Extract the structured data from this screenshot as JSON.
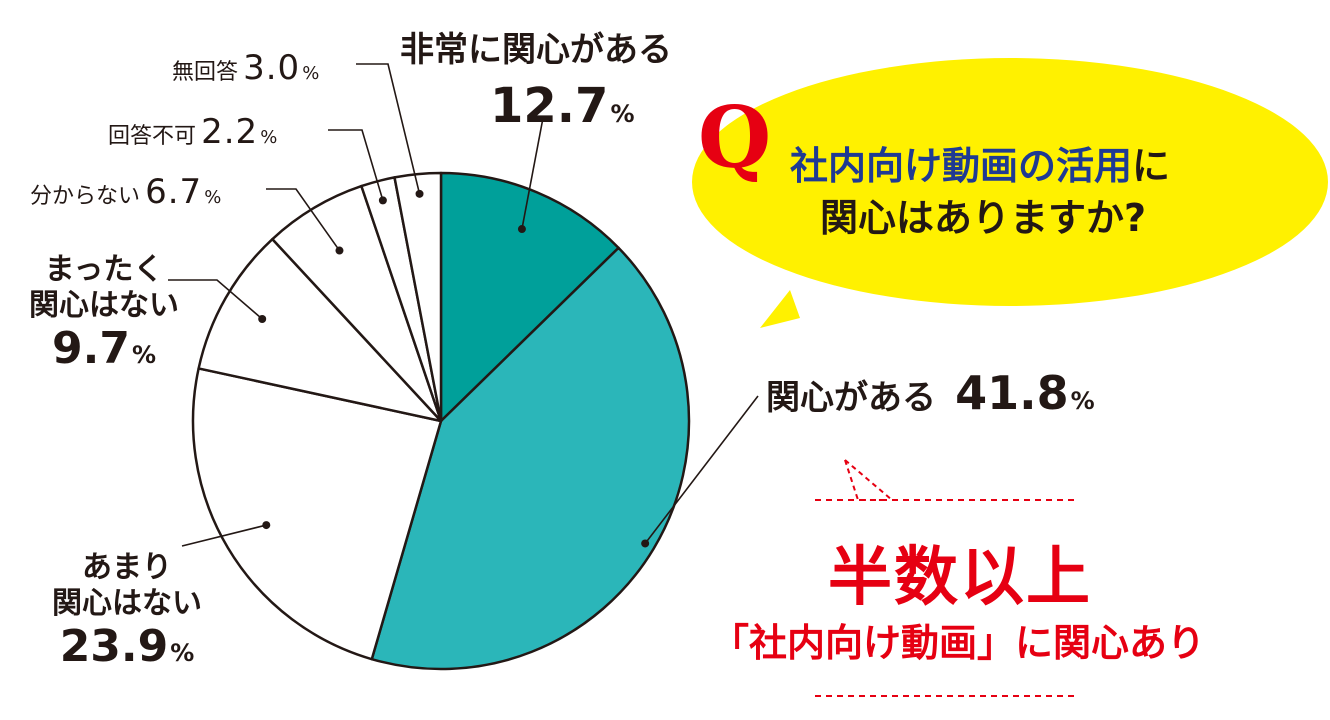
{
  "question": {
    "mark": "Q",
    "highlight": "社内向け動画の活用",
    "rest1": "に",
    "line2": "関心はありますか?"
  },
  "conclusion": {
    "main": "半数以上",
    "sub": "「社内向け動画」に関心あり"
  },
  "colors": {
    "very_interested": "#00a09a",
    "interested": "#2bb6b9",
    "other": "#ffffff",
    "bubble": "#fff100",
    "accent_red": "#e60012",
    "accent_blue": "#1f3a93"
  },
  "chart_data": {
    "type": "pie",
    "start": "12 o'clock",
    "direction": "clockwise",
    "unit": "%",
    "slices": [
      {
        "label": "非常に関心がある",
        "value": 12.7,
        "display": "12.7",
        "color": "#00a09a"
      },
      {
        "label": "関心がある",
        "value": 41.8,
        "display": "41.8",
        "color": "#2bb6b9"
      },
      {
        "label_lines": [
          "あまり",
          "関心はない"
        ],
        "value": 23.9,
        "display": "23.9",
        "color": "#ffffff"
      },
      {
        "label_lines": [
          "まったく",
          "関心はない"
        ],
        "value": 9.7,
        "display": "9.7",
        "color": "#ffffff"
      },
      {
        "label": "分からない",
        "value": 6.7,
        "display": "6.7",
        "color": "#ffffff"
      },
      {
        "label": "回答不可",
        "value": 2.2,
        "display": "2.2",
        "color": "#ffffff"
      },
      {
        "label": "無回答",
        "value": 3.0,
        "display": "3.0",
        "color": "#ffffff"
      }
    ]
  }
}
